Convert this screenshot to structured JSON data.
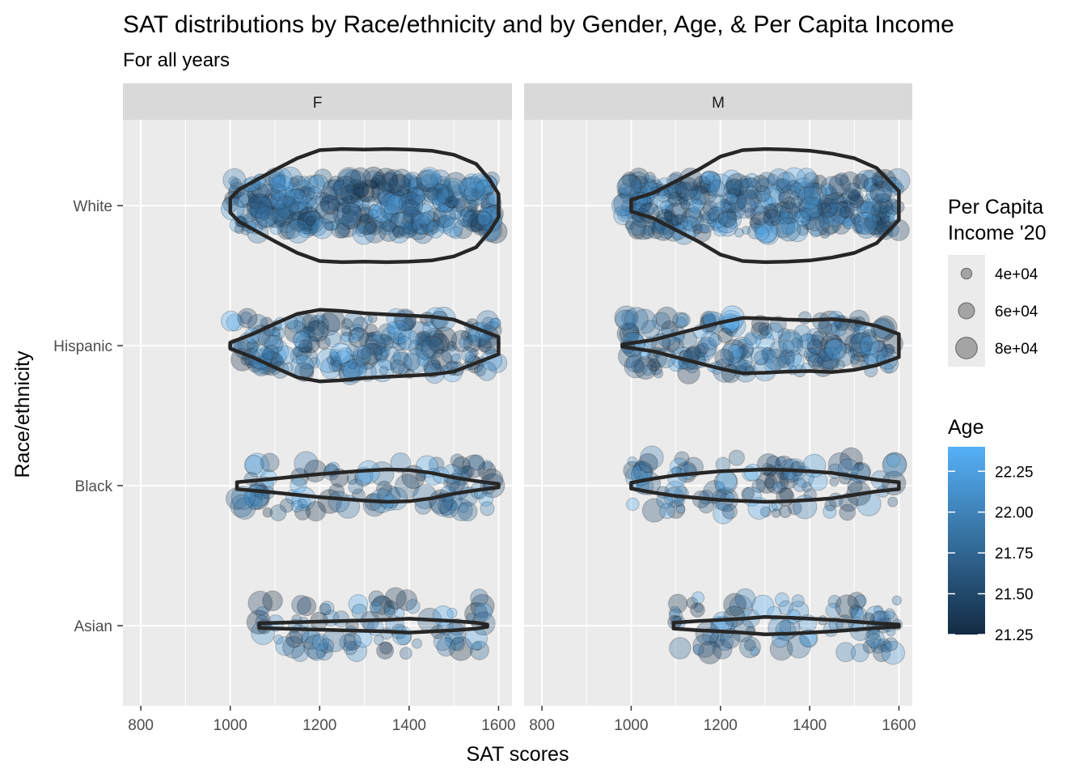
{
  "chart_data": {
    "type": "scatter",
    "title": "SAT distributions by Race/ethnicity and by Gender, Age, & Per Capita Income",
    "subtitle": "For all years",
    "xlabel": "SAT scores",
    "ylabel": "Race/ethnicity",
    "xlim": [
      760,
      1630
    ],
    "x_ticks": [
      800,
      1000,
      1200,
      1400,
      1600
    ],
    "x_tick_labels": [
      "800",
      "1000",
      "1200",
      "1400",
      "1600"
    ],
    "categories": [
      "White",
      "Hispanic",
      "Black",
      "Asian"
    ],
    "facets": [
      "F",
      "M"
    ],
    "grid": true,
    "overlay": "violin",
    "size_legend": {
      "title": "Per Capita Income '20",
      "title_lines": [
        "Per Capita",
        "Income '20"
      ],
      "values": [
        40000,
        60000,
        80000
      ],
      "labels": [
        "4e+04",
        "6e+04",
        "8e+04"
      ]
    },
    "color_legend": {
      "title": "Age",
      "range": [
        21.25,
        22.4
      ],
      "ticks": [
        21.25,
        21.5,
        21.75,
        22.0,
        22.25
      ],
      "tick_labels": [
        "21.25",
        "21.50",
        "21.75",
        "22.00",
        "22.25"
      ],
      "low_color": "#132B43",
      "high_color": "#56B1F7"
    },
    "violins": [
      {
        "facet": "F",
        "group": "White",
        "min": 1000,
        "max": 1600,
        "shape": [
          [
            1000,
            0.12
          ],
          [
            1020,
            0.28
          ],
          [
            1060,
            0.45
          ],
          [
            1100,
            0.62
          ],
          [
            1150,
            0.82
          ],
          [
            1200,
            0.96
          ],
          [
            1250,
            0.98
          ],
          [
            1300,
            0.97
          ],
          [
            1350,
            0.98
          ],
          [
            1400,
            0.97
          ],
          [
            1450,
            0.95
          ],
          [
            1500,
            0.88
          ],
          [
            1550,
            0.72
          ],
          [
            1580,
            0.45
          ],
          [
            1600,
            0.2
          ]
        ]
      },
      {
        "facet": "F",
        "group": "Hispanic",
        "min": 1000,
        "max": 1600,
        "shape": [
          [
            1000,
            0.05
          ],
          [
            1050,
            0.2
          ],
          [
            1100,
            0.38
          ],
          [
            1150,
            0.55
          ],
          [
            1200,
            0.62
          ],
          [
            1250,
            0.6
          ],
          [
            1300,
            0.56
          ],
          [
            1350,
            0.54
          ],
          [
            1400,
            0.52
          ],
          [
            1450,
            0.5
          ],
          [
            1500,
            0.45
          ],
          [
            1550,
            0.3
          ],
          [
            1600,
            0.15
          ]
        ]
      },
      {
        "facet": "F",
        "group": "Black",
        "min": 1015,
        "max": 1600,
        "shape": [
          [
            1015,
            0.06
          ],
          [
            1100,
            0.12
          ],
          [
            1200,
            0.2
          ],
          [
            1300,
            0.26
          ],
          [
            1350,
            0.28
          ],
          [
            1400,
            0.27
          ],
          [
            1450,
            0.22
          ],
          [
            1500,
            0.14
          ],
          [
            1550,
            0.08
          ],
          [
            1600,
            0.03
          ]
        ]
      },
      {
        "facet": "F",
        "group": "Asian",
        "min": 1065,
        "max": 1575,
        "shape": [
          [
            1065,
            0.04
          ],
          [
            1150,
            0.06
          ],
          [
            1250,
            0.08
          ],
          [
            1350,
            0.1
          ],
          [
            1400,
            0.12
          ],
          [
            1450,
            0.1
          ],
          [
            1500,
            0.08
          ],
          [
            1550,
            0.05
          ],
          [
            1575,
            0.02
          ]
        ]
      },
      {
        "facet": "M",
        "group": "White",
        "min": 1000,
        "max": 1600,
        "shape": [
          [
            1000,
            0.1
          ],
          [
            1050,
            0.22
          ],
          [
            1100,
            0.42
          ],
          [
            1150,
            0.62
          ],
          [
            1200,
            0.85
          ],
          [
            1250,
            0.96
          ],
          [
            1300,
            0.98
          ],
          [
            1350,
            0.97
          ],
          [
            1400,
            0.95
          ],
          [
            1450,
            0.9
          ],
          [
            1500,
            0.82
          ],
          [
            1550,
            0.65
          ],
          [
            1600,
            0.25
          ]
        ]
      },
      {
        "facet": "M",
        "group": "Hispanic",
        "min": 980,
        "max": 1600,
        "shape": [
          [
            980,
            0.02
          ],
          [
            1050,
            0.1
          ],
          [
            1100,
            0.2
          ],
          [
            1150,
            0.3
          ],
          [
            1200,
            0.4
          ],
          [
            1250,
            0.48
          ],
          [
            1300,
            0.47
          ],
          [
            1350,
            0.45
          ],
          [
            1400,
            0.44
          ],
          [
            1450,
            0.46
          ],
          [
            1500,
            0.42
          ],
          [
            1550,
            0.34
          ],
          [
            1600,
            0.2
          ]
        ]
      },
      {
        "facet": "M",
        "group": "Black",
        "min": 1000,
        "max": 1600,
        "shape": [
          [
            1000,
            0.05
          ],
          [
            1050,
            0.12
          ],
          [
            1100,
            0.18
          ],
          [
            1200,
            0.25
          ],
          [
            1300,
            0.28
          ],
          [
            1350,
            0.27
          ],
          [
            1400,
            0.25
          ],
          [
            1450,
            0.22
          ],
          [
            1500,
            0.16
          ],
          [
            1550,
            0.1
          ],
          [
            1600,
            0.06
          ]
        ]
      },
      {
        "facet": "M",
        "group": "Asian",
        "min": 1095,
        "max": 1600,
        "shape": [
          [
            1095,
            0.05
          ],
          [
            1150,
            0.08
          ],
          [
            1200,
            0.1
          ],
          [
            1250,
            0.12
          ],
          [
            1300,
            0.15
          ],
          [
            1350,
            0.14
          ],
          [
            1400,
            0.12
          ],
          [
            1450,
            0.1
          ],
          [
            1500,
            0.07
          ],
          [
            1550,
            0.04
          ],
          [
            1600,
            0.02
          ]
        ]
      }
    ],
    "points_note": "Jittered SAT observations per race/ethnicity and gender; point size = per capita income, color = age.",
    "point_groups": [
      {
        "facet": "F",
        "group": "White",
        "n": 360,
        "xmin": 1000,
        "xmax": 1600,
        "spread": 0.42
      },
      {
        "facet": "F",
        "group": "Hispanic",
        "n": 210,
        "xmin": 1000,
        "xmax": 1600,
        "spread": 0.42
      },
      {
        "facet": "F",
        "group": "Black",
        "n": 95,
        "xmin": 1010,
        "xmax": 1600,
        "spread": 0.42
      },
      {
        "facet": "F",
        "group": "Asian",
        "n": 85,
        "xmin": 1060,
        "xmax": 1580,
        "spread": 0.42
      },
      {
        "facet": "M",
        "group": "White",
        "n": 330,
        "xmin": 980,
        "xmax": 1600,
        "spread": 0.42
      },
      {
        "facet": "M",
        "group": "Hispanic",
        "n": 200,
        "xmin": 975,
        "xmax": 1600,
        "spread": 0.42
      },
      {
        "facet": "M",
        "group": "Black",
        "n": 110,
        "xmin": 1000,
        "xmax": 1600,
        "spread": 0.42
      },
      {
        "facet": "M",
        "group": "Asian",
        "n": 90,
        "xmin": 1095,
        "xmax": 1600,
        "spread": 0.42
      }
    ]
  }
}
